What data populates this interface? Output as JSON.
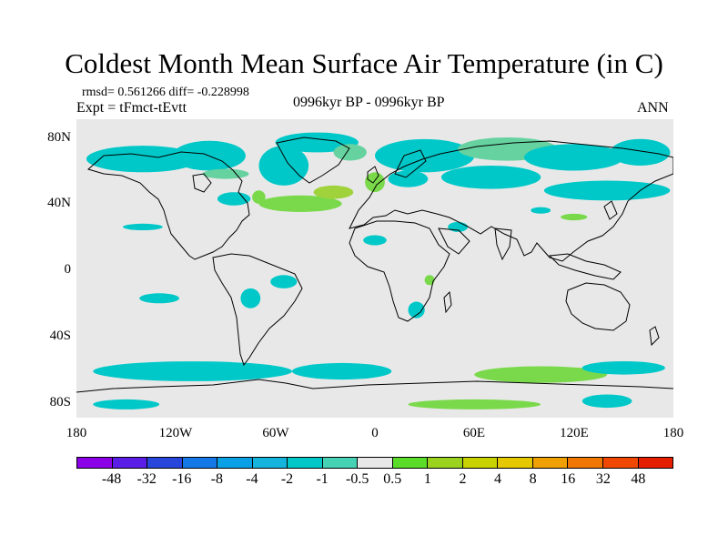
{
  "title": "Coldest Month Mean Surface Air Temperature (in C)",
  "stats_text": "rmsd= 0.561266 diff= -0.228998",
  "experiment_text": "Expt = tFmct-tEvtt",
  "period_text": "0996kyr BP - 0996kyr BP",
  "season_text": "ANN",
  "map": {
    "projection": "cylindrical equidistant",
    "lon_range": [
      -180,
      180
    ],
    "lat_range": [
      -90,
      90
    ],
    "lat_ticks": [
      {
        "value": 80,
        "label": "80N"
      },
      {
        "value": 40,
        "label": "40N"
      },
      {
        "value": 0,
        "label": "0"
      },
      {
        "value": -40,
        "label": "40S"
      },
      {
        "value": -80,
        "label": "80S"
      }
    ],
    "lon_ticks": [
      {
        "value": -180,
        "label": "180"
      },
      {
        "value": -120,
        "label": "120W"
      },
      {
        "value": -60,
        "label": "60W"
      },
      {
        "value": 0,
        "label": "0"
      },
      {
        "value": 60,
        "label": "60E"
      },
      {
        "value": 120,
        "label": "120E"
      },
      {
        "value": 180,
        "label": "180"
      }
    ],
    "background_color": "#e8e8e8",
    "coastline_color": "#000000",
    "anomaly_patches": [
      {
        "lon": -140,
        "lat": 66,
        "rx": 34,
        "ry": 8,
        "color": "#00c8c8"
      },
      {
        "lon": -100,
        "lat": 68,
        "rx": 22,
        "ry": 9,
        "color": "#00c8c8"
      },
      {
        "lon": -55,
        "lat": 62,
        "rx": 15,
        "ry": 12,
        "color": "#00c8c8"
      },
      {
        "lon": -35,
        "lat": 76,
        "rx": 25,
        "ry": 6,
        "color": "#00c8c8"
      },
      {
        "lon": -15,
        "lat": 70,
        "rx": 10,
        "ry": 5,
        "color": "#66d2a0"
      },
      {
        "lon": 30,
        "lat": 68,
        "rx": 30,
        "ry": 10,
        "color": "#00c8c8"
      },
      {
        "lon": 80,
        "lat": 72,
        "rx": 30,
        "ry": 7,
        "color": "#66d2a0"
      },
      {
        "lon": 120,
        "lat": 67,
        "rx": 30,
        "ry": 8,
        "color": "#00c8c8"
      },
      {
        "lon": 160,
        "lat": 70,
        "rx": 18,
        "ry": 8,
        "color": "#00c8c8"
      },
      {
        "lon": 70,
        "lat": 55,
        "rx": 30,
        "ry": 7,
        "color": "#00c8c8"
      },
      {
        "lon": 140,
        "lat": 47,
        "rx": 38,
        "ry": 6,
        "color": "#00c8c8"
      },
      {
        "lon": -90,
        "lat": 57,
        "rx": 14,
        "ry": 3,
        "color": "#66d2a0"
      },
      {
        "lon": -85,
        "lat": 42,
        "rx": 10,
        "ry": 4,
        "color": "#00c8c8"
      },
      {
        "lon": -70,
        "lat": 43,
        "rx": 4,
        "ry": 4,
        "color": "#7ad94a"
      },
      {
        "lon": -45,
        "lat": 39,
        "rx": 25,
        "ry": 5,
        "color": "#7ad94a"
      },
      {
        "lon": -25,
        "lat": 46,
        "rx": 12,
        "ry": 4,
        "color": "#a0d23c"
      },
      {
        "lon": 0,
        "lat": 52,
        "rx": 6,
        "ry": 6,
        "color": "#7ad94a"
      },
      {
        "lon": 20,
        "lat": 54,
        "rx": 12,
        "ry": 5,
        "color": "#00c8c8"
      },
      {
        "lon": 50,
        "lat": 25,
        "rx": 6,
        "ry": 3,
        "color": "#00c8c8"
      },
      {
        "lon": 0,
        "lat": 17,
        "rx": 7,
        "ry": 3,
        "color": "#00c8c8"
      },
      {
        "lon": 100,
        "lat": 35,
        "rx": 6,
        "ry": 2,
        "color": "#00c8c8"
      },
      {
        "lon": 120,
        "lat": 31,
        "rx": 8,
        "ry": 2,
        "color": "#7ad94a"
      },
      {
        "lon": -140,
        "lat": 25,
        "rx": 12,
        "ry": 2,
        "color": "#00c8c8"
      },
      {
        "lon": -75,
        "lat": -18,
        "rx": 6,
        "ry": 6,
        "color": "#00c8c8"
      },
      {
        "lon": -55,
        "lat": -8,
        "rx": 8,
        "ry": 4,
        "color": "#00c8c8"
      },
      {
        "lon": -130,
        "lat": -18,
        "rx": 12,
        "ry": 3,
        "color": "#00c8c8"
      },
      {
        "lon": 25,
        "lat": -25,
        "rx": 5,
        "ry": 5,
        "color": "#00c8c8"
      },
      {
        "lon": 33,
        "lat": -7,
        "rx": 3,
        "ry": 3,
        "color": "#7ad94a"
      },
      {
        "lon": -110,
        "lat": -62,
        "rx": 60,
        "ry": 6,
        "color": "#00c8c8"
      },
      {
        "lon": -20,
        "lat": -62,
        "rx": 30,
        "ry": 5,
        "color": "#00c8c8"
      },
      {
        "lon": 100,
        "lat": -64,
        "rx": 40,
        "ry": 5,
        "color": "#7ad94a"
      },
      {
        "lon": 150,
        "lat": -60,
        "rx": 25,
        "ry": 4,
        "color": "#00c8c8"
      },
      {
        "lon": -150,
        "lat": -82,
        "rx": 20,
        "ry": 3,
        "color": "#00c8c8"
      },
      {
        "lon": 60,
        "lat": -82,
        "rx": 40,
        "ry": 3,
        "color": "#7ad94a"
      },
      {
        "lon": 140,
        "lat": -80,
        "rx": 15,
        "ry": 4,
        "color": "#00c8c8"
      }
    ]
  },
  "colorbar": {
    "colors": [
      "#8b00e6",
      "#5a1ee6",
      "#2846dc",
      "#1478e6",
      "#0aa0e6",
      "#14b4dc",
      "#00c8c8",
      "#46d2b4",
      "#e8e8e8",
      "#5adc28",
      "#9ad21e",
      "#c8d200",
      "#e6c800",
      "#f0a000",
      "#f07800",
      "#f04800",
      "#e61e00"
    ],
    "labels": [
      "-48",
      "-32",
      "-16",
      "-8",
      "-4",
      "-2",
      "-1",
      "-0.5",
      "0.5",
      "1",
      "2",
      "4",
      "8",
      "16",
      "32",
      "48"
    ]
  }
}
